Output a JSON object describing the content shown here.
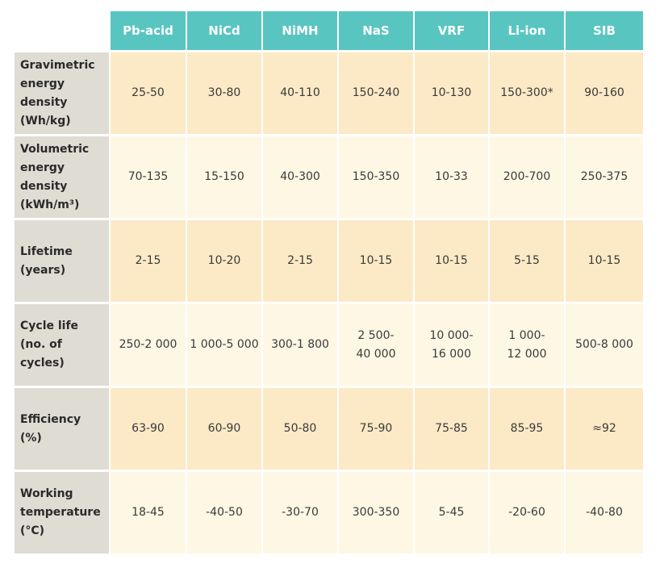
{
  "table": {
    "header": [
      "Pb-acid",
      "NiCd",
      "NiMH",
      "NaS",
      "VRF",
      "Li-ion",
      "SIB"
    ],
    "rows": [
      {
        "label": "Gravimetric\nenergy\ndensity\n(Wh/kg)",
        "cells": [
          "25-50",
          "30-80",
          "40-110",
          "150-240",
          "10-130",
          "150-300*",
          "90-160"
        ]
      },
      {
        "label": "Volumetric\nenergy\ndensity\n(kWh/m³)",
        "cells": [
          "70-135",
          "15-150",
          "40-300",
          "150-350",
          "10-33",
          "200-700",
          "250-375"
        ]
      },
      {
        "label": "Lifetime\n(years)",
        "cells": [
          "2-15",
          "10-20",
          "2-15",
          "10-15",
          "10-15",
          "5-15",
          "10-15"
        ]
      },
      {
        "label": "Cycle life\n(no. of cycles)",
        "cells": [
          "250-2 000",
          "1 000-5 000",
          "300-1 800",
          "2 500-\n40 000",
          "10 000-\n16 000",
          "1 000-\n12 000",
          "500-8 000"
        ]
      },
      {
        "label": "Efficiency\n(%)",
        "cells": [
          "63-90",
          "60-90",
          "50-80",
          "75-90",
          "75-85",
          "85-95",
          "≈92"
        ]
      },
      {
        "label": "Working\ntemperature\n(°C)",
        "cells": [
          "18-45",
          "-40-50",
          "-30-70",
          "300-350",
          "5-45",
          "-20-60",
          "-40-80"
        ]
      }
    ]
  }
}
